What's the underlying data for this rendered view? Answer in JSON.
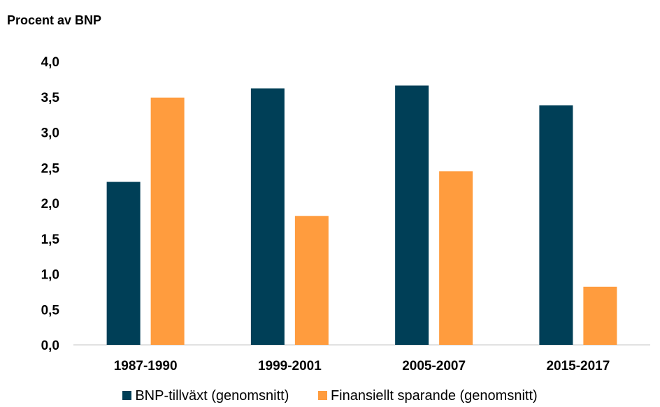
{
  "chart_data": {
    "type": "bar",
    "ylabel": "Procent av BNP",
    "categories": [
      "1987-1990",
      "1999-2001",
      "2005-2007",
      "2015-2017"
    ],
    "series": [
      {
        "name": "BNP-tillväxt (genomsnitt)",
        "color": "#003f57",
        "values": [
          2.3,
          3.62,
          3.66,
          3.38
        ]
      },
      {
        "name": "Finansiellt sparande (genomsnitt)",
        "color": "#ff9c3e",
        "values": [
          3.49,
          1.82,
          2.45,
          0.82
        ]
      }
    ],
    "yticks": [
      "0,0",
      "0,5",
      "1,0",
      "1,5",
      "2,0",
      "2,5",
      "3,0",
      "3,5",
      "4,0"
    ],
    "ylim": [
      0,
      4.0
    ],
    "grid": false,
    "legend_position": "bottom"
  }
}
